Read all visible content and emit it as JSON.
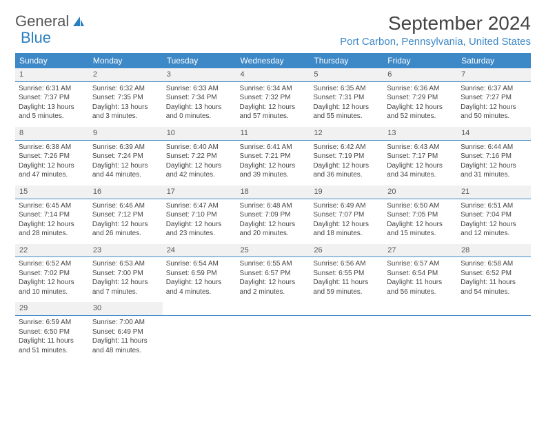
{
  "logo": {
    "text1": "General",
    "text2": "Blue"
  },
  "title": "September 2024",
  "location": "Port Carbon, Pennsylvania, United States",
  "colors": {
    "header_bg": "#3d88c7",
    "header_text": "#ffffff",
    "daynum_bg": "#f1f1f2",
    "rule": "#3d88c7",
    "body_text": "#444444",
    "location_text": "#3d88c7"
  },
  "day_headers": [
    "Sunday",
    "Monday",
    "Tuesday",
    "Wednesday",
    "Thursday",
    "Friday",
    "Saturday"
  ],
  "weeks": [
    [
      {
        "n": "1",
        "sr": "6:31 AM",
        "ss": "7:37 PM",
        "dl": "13 hours and 5 minutes."
      },
      {
        "n": "2",
        "sr": "6:32 AM",
        "ss": "7:35 PM",
        "dl": "13 hours and 3 minutes."
      },
      {
        "n": "3",
        "sr": "6:33 AM",
        "ss": "7:34 PM",
        "dl": "13 hours and 0 minutes."
      },
      {
        "n": "4",
        "sr": "6:34 AM",
        "ss": "7:32 PM",
        "dl": "12 hours and 57 minutes."
      },
      {
        "n": "5",
        "sr": "6:35 AM",
        "ss": "7:31 PM",
        "dl": "12 hours and 55 minutes."
      },
      {
        "n": "6",
        "sr": "6:36 AM",
        "ss": "7:29 PM",
        "dl": "12 hours and 52 minutes."
      },
      {
        "n": "7",
        "sr": "6:37 AM",
        "ss": "7:27 PM",
        "dl": "12 hours and 50 minutes."
      }
    ],
    [
      {
        "n": "8",
        "sr": "6:38 AM",
        "ss": "7:26 PM",
        "dl": "12 hours and 47 minutes."
      },
      {
        "n": "9",
        "sr": "6:39 AM",
        "ss": "7:24 PM",
        "dl": "12 hours and 44 minutes."
      },
      {
        "n": "10",
        "sr": "6:40 AM",
        "ss": "7:22 PM",
        "dl": "12 hours and 42 minutes."
      },
      {
        "n": "11",
        "sr": "6:41 AM",
        "ss": "7:21 PM",
        "dl": "12 hours and 39 minutes."
      },
      {
        "n": "12",
        "sr": "6:42 AM",
        "ss": "7:19 PM",
        "dl": "12 hours and 36 minutes."
      },
      {
        "n": "13",
        "sr": "6:43 AM",
        "ss": "7:17 PM",
        "dl": "12 hours and 34 minutes."
      },
      {
        "n": "14",
        "sr": "6:44 AM",
        "ss": "7:16 PM",
        "dl": "12 hours and 31 minutes."
      }
    ],
    [
      {
        "n": "15",
        "sr": "6:45 AM",
        "ss": "7:14 PM",
        "dl": "12 hours and 28 minutes."
      },
      {
        "n": "16",
        "sr": "6:46 AM",
        "ss": "7:12 PM",
        "dl": "12 hours and 26 minutes."
      },
      {
        "n": "17",
        "sr": "6:47 AM",
        "ss": "7:10 PM",
        "dl": "12 hours and 23 minutes."
      },
      {
        "n": "18",
        "sr": "6:48 AM",
        "ss": "7:09 PM",
        "dl": "12 hours and 20 minutes."
      },
      {
        "n": "19",
        "sr": "6:49 AM",
        "ss": "7:07 PM",
        "dl": "12 hours and 18 minutes."
      },
      {
        "n": "20",
        "sr": "6:50 AM",
        "ss": "7:05 PM",
        "dl": "12 hours and 15 minutes."
      },
      {
        "n": "21",
        "sr": "6:51 AM",
        "ss": "7:04 PM",
        "dl": "12 hours and 12 minutes."
      }
    ],
    [
      {
        "n": "22",
        "sr": "6:52 AM",
        "ss": "7:02 PM",
        "dl": "12 hours and 10 minutes."
      },
      {
        "n": "23",
        "sr": "6:53 AM",
        "ss": "7:00 PM",
        "dl": "12 hours and 7 minutes."
      },
      {
        "n": "24",
        "sr": "6:54 AM",
        "ss": "6:59 PM",
        "dl": "12 hours and 4 minutes."
      },
      {
        "n": "25",
        "sr": "6:55 AM",
        "ss": "6:57 PM",
        "dl": "12 hours and 2 minutes."
      },
      {
        "n": "26",
        "sr": "6:56 AM",
        "ss": "6:55 PM",
        "dl": "11 hours and 59 minutes."
      },
      {
        "n": "27",
        "sr": "6:57 AM",
        "ss": "6:54 PM",
        "dl": "11 hours and 56 minutes."
      },
      {
        "n": "28",
        "sr": "6:58 AM",
        "ss": "6:52 PM",
        "dl": "11 hours and 54 minutes."
      }
    ],
    [
      {
        "n": "29",
        "sr": "6:59 AM",
        "ss": "6:50 PM",
        "dl": "11 hours and 51 minutes."
      },
      {
        "n": "30",
        "sr": "7:00 AM",
        "ss": "6:49 PM",
        "dl": "11 hours and 48 minutes."
      },
      null,
      null,
      null,
      null,
      null
    ]
  ],
  "labels": {
    "sunrise": "Sunrise:",
    "sunset": "Sunset:",
    "daylight": "Daylight:"
  }
}
